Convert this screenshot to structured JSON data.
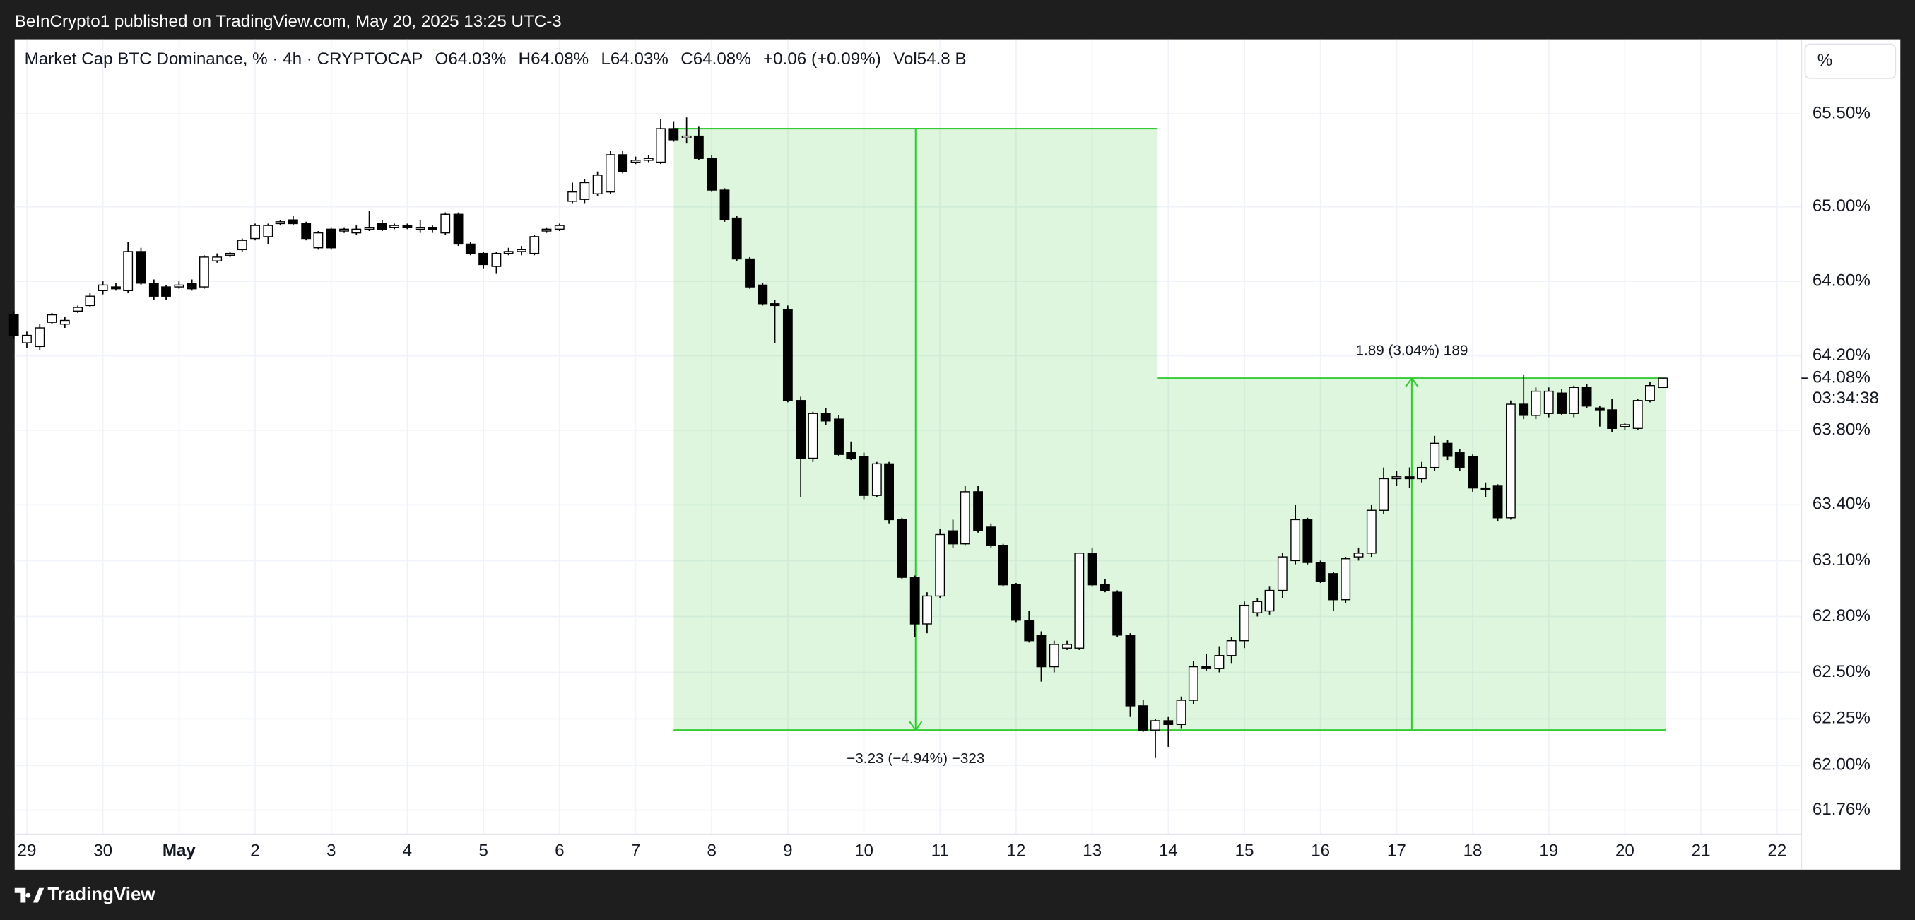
{
  "header": {
    "byline": "BeInCrypto1 published on TradingView.com, May 20, 2025 13:25 UTC-3"
  },
  "footer": {
    "brand": "TradingView"
  },
  "chart_data": {
    "type": "candlestick",
    "title": "Market Cap BTC Dominance, % · 4h · CRYPTOCAP",
    "ohlc_labels": [
      "O64.03%",
      "H64.08%",
      "L64.03%",
      "C64.08%"
    ],
    "change": "+0.06 (+0.09%)",
    "volume": "Vol54.8 B",
    "scale_button": "%",
    "up_color": "#ffffff",
    "down_color": "#000000",
    "wick_color": "#000000",
    "measure_color": "#33cc33",
    "grid": true,
    "xlim": [
      -0.16,
      23.32
    ],
    "ylim": [
      61.63,
      65.9
    ],
    "xticks": [
      {
        "value": 0,
        "label": "29"
      },
      {
        "value": 1,
        "label": "30"
      },
      {
        "value": 2,
        "label": "May"
      },
      {
        "value": 3,
        "label": "2"
      },
      {
        "value": 4,
        "label": "3"
      },
      {
        "value": 5,
        "label": "4"
      },
      {
        "value": 6,
        "label": "5"
      },
      {
        "value": 7,
        "label": "6"
      },
      {
        "value": 8,
        "label": "7"
      },
      {
        "value": 9,
        "label": "8"
      },
      {
        "value": 10,
        "label": "9"
      },
      {
        "value": 11,
        "label": "10"
      },
      {
        "value": 12,
        "label": "11"
      },
      {
        "value": 13,
        "label": "12"
      },
      {
        "value": 14,
        "label": "13"
      },
      {
        "value": 15,
        "label": "14"
      },
      {
        "value": 16,
        "label": "15"
      },
      {
        "value": 17,
        "label": "16"
      },
      {
        "value": 18,
        "label": "17"
      },
      {
        "value": 19,
        "label": "18"
      },
      {
        "value": 20,
        "label": "19"
      },
      {
        "value": 21,
        "label": "20"
      },
      {
        "value": 22,
        "label": "21"
      },
      {
        "value": 23,
        "label": "22"
      }
    ],
    "yticks": [
      {
        "value": 65.5,
        "label": "65.50%"
      },
      {
        "value": 65,
        "label": "65.00%"
      },
      {
        "value": 64.6,
        "label": "64.60%"
      },
      {
        "value": 64.2,
        "label": "64.20%"
      },
      {
        "value": 63.8,
        "label": "63.80%"
      },
      {
        "value": 63.4,
        "label": "63.40%"
      },
      {
        "value": 63.1,
        "label": "63.10%"
      },
      {
        "value": 62.8,
        "label": "62.80%"
      },
      {
        "value": 62.5,
        "label": "62.50%"
      },
      {
        "value": 62.25,
        "label": "62.25%"
      },
      {
        "value": 62,
        "label": "62.00%"
      },
      {
        "value": 61.76,
        "label": "61.76%"
      }
    ],
    "last_price": {
      "value": 64.08,
      "label": "64.08%"
    },
    "countdown": "03:34:38",
    "measures": [
      {
        "label": "−3.23 (−4.94%) −323",
        "x": [
          8.5,
          14.86
        ],
        "from": 65.42,
        "to": 62.19
      },
      {
        "label": "1.89 (3.04%) 189",
        "x": [
          14.86,
          21.54
        ],
        "from": 62.19,
        "to": 64.08
      }
    ],
    "x": [
      -0.17,
      0,
      0.17,
      0.33,
      0.5,
      0.67,
      0.83,
      1,
      1.17,
      1.33,
      1.5,
      1.67,
      1.83,
      2,
      2.17,
      2.33,
      2.5,
      2.67,
      2.83,
      3,
      3.17,
      3.33,
      3.5,
      3.67,
      3.83,
      4,
      4.17,
      4.33,
      4.5,
      4.67,
      4.83,
      5,
      5.17,
      5.33,
      5.5,
      5.67,
      5.83,
      6,
      6.17,
      6.33,
      6.5,
      6.67,
      6.83,
      7,
      7.17,
      7.33,
      7.5,
      7.67,
      7.83,
      8,
      8.17,
      8.33,
      8.5,
      8.67,
      8.83,
      9,
      9.17,
      9.33,
      9.5,
      9.67,
      9.83,
      10,
      10.17,
      10.33,
      10.5,
      10.67,
      10.83,
      11,
      11.17,
      11.33,
      11.5,
      11.67,
      11.83,
      12,
      12.17,
      12.33,
      12.5,
      12.67,
      12.83,
      13,
      13.17,
      13.33,
      13.5,
      13.67,
      13.83,
      14,
      14.17,
      14.33,
      14.5,
      14.67,
      14.83,
      15,
      15.17,
      15.33,
      15.5,
      15.67,
      15.83,
      16,
      16.17,
      16.33,
      16.5,
      16.67,
      16.83,
      17,
      17.17,
      17.33,
      17.5,
      17.67,
      17.83,
      18,
      18.17,
      18.33,
      18.5,
      18.67,
      18.83,
      19,
      19.17,
      19.33,
      19.5,
      19.67,
      19.83,
      20,
      20.17,
      20.33,
      20.5,
      20.67,
      20.83,
      21,
      21.17,
      21.33,
      21.5
    ],
    "ohlc": [
      [
        64.42,
        64.44,
        64.29,
        64.31
      ],
      [
        64.27,
        64.33,
        64.24,
        64.31
      ],
      [
        64.25,
        64.37,
        64.23,
        64.35
      ],
      [
        64.38,
        64.43,
        64.37,
        64.42
      ],
      [
        64.37,
        64.41,
        64.35,
        64.39
      ],
      [
        64.44,
        64.47,
        64.43,
        64.46
      ],
      [
        64.47,
        64.54,
        64.46,
        64.52
      ],
      [
        64.55,
        64.6,
        64.53,
        64.58
      ],
      [
        64.57,
        64.59,
        64.55,
        64.56
      ],
      [
        64.55,
        64.81,
        64.54,
        64.76
      ],
      [
        64.76,
        64.78,
        64.58,
        64.59
      ],
      [
        64.59,
        64.61,
        64.5,
        64.52
      ],
      [
        64.57,
        64.58,
        64.5,
        64.52
      ],
      [
        64.57,
        64.6,
        64.56,
        64.58
      ],
      [
        64.59,
        64.61,
        64.55,
        64.56
      ],
      [
        64.57,
        64.74,
        64.56,
        64.73
      ],
      [
        64.71,
        64.75,
        64.7,
        64.73
      ],
      [
        64.74,
        64.76,
        64.73,
        64.75
      ],
      [
        64.77,
        64.83,
        64.76,
        64.82
      ],
      [
        64.83,
        64.91,
        64.82,
        64.9
      ],
      [
        64.84,
        64.91,
        64.8,
        64.9
      ],
      [
        64.91,
        64.93,
        64.9,
        64.92
      ],
      [
        64.93,
        64.95,
        64.9,
        64.91
      ],
      [
        64.91,
        64.92,
        64.82,
        64.83
      ],
      [
        64.78,
        64.87,
        64.77,
        64.86
      ],
      [
        64.88,
        64.89,
        64.77,
        64.78
      ],
      [
        64.87,
        64.89,
        64.86,
        64.88
      ],
      [
        64.86,
        64.9,
        64.85,
        64.88
      ],
      [
        64.88,
        64.98,
        64.87,
        64.89
      ],
      [
        64.91,
        64.93,
        64.87,
        64.88
      ],
      [
        64.89,
        64.91,
        64.88,
        64.9
      ],
      [
        64.9,
        64.91,
        64.88,
        64.89
      ],
      [
        64.88,
        64.93,
        64.86,
        64.89
      ],
      [
        64.89,
        64.9,
        64.86,
        64.88
      ],
      [
        64.86,
        64.97,
        64.85,
        64.96
      ],
      [
        64.96,
        64.97,
        64.79,
        64.8
      ],
      [
        64.8,
        64.81,
        64.74,
        64.75
      ],
      [
        64.75,
        64.76,
        64.67,
        64.69
      ],
      [
        64.68,
        64.76,
        64.64,
        64.75
      ],
      [
        64.75,
        64.78,
        64.74,
        64.76
      ],
      [
        64.76,
        64.79,
        64.74,
        64.77
      ],
      [
        64.75,
        64.85,
        64.74,
        64.84
      ],
      [
        64.87,
        64.89,
        64.86,
        64.88
      ],
      [
        64.88,
        64.91,
        64.87,
        64.9
      ],
      [
        65.03,
        65.13,
        65.02,
        65.08
      ],
      [
        65.04,
        65.15,
        65.02,
        65.13
      ],
      [
        65.07,
        65.19,
        65.06,
        65.17
      ],
      [
        65.08,
        65.3,
        65.07,
        65.28
      ],
      [
        65.28,
        65.3,
        65.18,
        65.19
      ],
      [
        65.24,
        65.27,
        65.23,
        65.25
      ],
      [
        65.25,
        65.28,
        65.24,
        65.26
      ],
      [
        65.24,
        65.47,
        65.23,
        65.42
      ],
      [
        65.42,
        65.46,
        65.35,
        65.36
      ],
      [
        65.37,
        65.48,
        65.34,
        65.38
      ],
      [
        65.38,
        65.43,
        65.25,
        65.26
      ],
      [
        65.26,
        65.28,
        65.08,
        65.09
      ],
      [
        65.09,
        65.1,
        64.92,
        64.93
      ],
      [
        64.94,
        64.95,
        64.71,
        64.72
      ],
      [
        64.72,
        64.73,
        64.56,
        64.57
      ],
      [
        64.58,
        64.59,
        64.47,
        64.48
      ],
      [
        64.48,
        64.5,
        64.27,
        64.47
      ],
      [
        64.45,
        64.47,
        63.95,
        63.96
      ],
      [
        63.96,
        63.98,
        63.44,
        63.65
      ],
      [
        63.65,
        63.9,
        63.63,
        63.89
      ],
      [
        63.89,
        63.92,
        63.83,
        63.85
      ],
      [
        63.86,
        63.88,
        63.66,
        63.67
      ],
      [
        63.68,
        63.74,
        63.64,
        63.65
      ],
      [
        63.66,
        63.68,
        63.43,
        63.45
      ],
      [
        63.45,
        63.63,
        63.44,
        63.62
      ],
      [
        63.62,
        63.63,
        63.3,
        63.32
      ],
      [
        63.32,
        63.33,
        63.0,
        63.01
      ],
      [
        63.01,
        63.02,
        62.69,
        62.76
      ],
      [
        62.76,
        62.93,
        62.71,
        62.91
      ],
      [
        62.91,
        63.27,
        62.9,
        63.24
      ],
      [
        63.26,
        63.32,
        63.17,
        63.19
      ],
      [
        63.19,
        63.5,
        63.18,
        63.47
      ],
      [
        63.47,
        63.5,
        63.25,
        63.26
      ],
      [
        63.28,
        63.3,
        63.17,
        63.18
      ],
      [
        63.18,
        63.19,
        62.96,
        62.97
      ],
      [
        62.97,
        62.98,
        62.77,
        62.78
      ],
      [
        62.78,
        62.83,
        62.66,
        62.67
      ],
      [
        62.7,
        62.72,
        62.45,
        62.53
      ],
      [
        62.53,
        62.67,
        62.5,
        62.65
      ],
      [
        62.63,
        62.67,
        62.62,
        62.65
      ],
      [
        62.63,
        63.14,
        62.62,
        63.14
      ],
      [
        63.14,
        63.17,
        62.96,
        62.97
      ],
      [
        62.97,
        63.0,
        62.93,
        62.94
      ],
      [
        62.93,
        62.94,
        62.69,
        62.7
      ],
      [
        62.7,
        62.71,
        62.26,
        62.32
      ],
      [
        62.32,
        62.35,
        62.18,
        62.19
      ],
      [
        62.19,
        62.25,
        62.04,
        62.24
      ],
      [
        62.24,
        62.26,
        62.1,
        62.22
      ],
      [
        62.22,
        62.37,
        62.2,
        62.35
      ],
      [
        62.35,
        62.56,
        62.33,
        62.53
      ],
      [
        62.53,
        62.6,
        62.51,
        62.52
      ],
      [
        62.52,
        62.64,
        62.5,
        62.59
      ],
      [
        62.59,
        62.69,
        62.55,
        62.67
      ],
      [
        62.67,
        62.88,
        62.63,
        62.86
      ],
      [
        62.82,
        62.9,
        62.8,
        62.88
      ],
      [
        62.83,
        62.96,
        62.81,
        62.94
      ],
      [
        62.94,
        63.14,
        62.9,
        63.12
      ],
      [
        63.1,
        63.4,
        63.08,
        63.32
      ],
      [
        63.32,
        63.33,
        63.08,
        63.09
      ],
      [
        63.09,
        63.1,
        62.98,
        62.99
      ],
      [
        63.03,
        63.04,
        62.83,
        62.89
      ],
      [
        62.89,
        63.12,
        62.87,
        63.11
      ],
      [
        63.12,
        63.17,
        63.1,
        63.14
      ],
      [
        63.14,
        63.4,
        63.12,
        63.37
      ],
      [
        63.37,
        63.6,
        63.35,
        63.54
      ],
      [
        63.54,
        63.58,
        63.5,
        63.55
      ],
      [
        63.55,
        63.6,
        63.49,
        63.54
      ],
      [
        63.54,
        63.63,
        63.52,
        63.6
      ],
      [
        63.6,
        63.77,
        63.58,
        63.73
      ],
      [
        63.73,
        63.75,
        63.64,
        63.66
      ],
      [
        63.68,
        63.7,
        63.58,
        63.6
      ],
      [
        63.66,
        63.67,
        63.47,
        63.49
      ],
      [
        63.49,
        63.52,
        63.44,
        63.48
      ],
      [
        63.5,
        63.51,
        63.31,
        63.33
      ],
      [
        63.33,
        63.96,
        63.32,
        63.94
      ],
      [
        63.94,
        64.1,
        63.86,
        63.88
      ],
      [
        63.88,
        64.03,
        63.86,
        64.01
      ],
      [
        63.89,
        64.03,
        63.87,
        64.01
      ],
      [
        64.0,
        64.02,
        63.88,
        63.89
      ],
      [
        63.89,
        64.04,
        63.87,
        64.03
      ],
      [
        64.03,
        64.05,
        63.92,
        63.93
      ],
      [
        63.92,
        63.93,
        63.82,
        63.91
      ],
      [
        63.91,
        63.97,
        63.79,
        63.81
      ],
      [
        63.82,
        63.84,
        63.8,
        63.83
      ],
      [
        63.81,
        63.97,
        63.8,
        63.96
      ],
      [
        63.96,
        64.06,
        63.95,
        64.04
      ],
      [
        64.03,
        64.08,
        64.03,
        64.08
      ]
    ]
  }
}
